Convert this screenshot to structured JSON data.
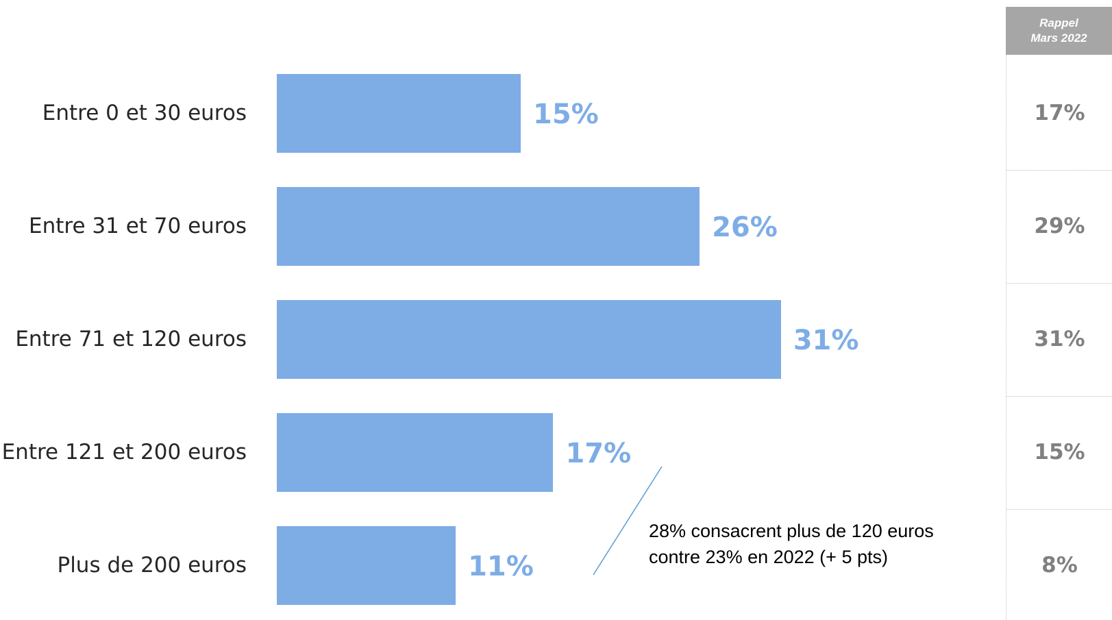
{
  "chart_data": {
    "type": "bar",
    "orientation": "horizontal",
    "categories": [
      "Entre 0 et 30 euros",
      "Entre 31 et 70 euros",
      "Entre 71 et 120 euros",
      "Entre 121 et 200 euros",
      "Plus de 200 euros"
    ],
    "values": [
      15,
      26,
      31,
      17,
      11
    ],
    "value_labels": [
      "15%",
      "26%",
      "31%",
      "17%",
      "11%"
    ],
    "unit": "%",
    "xlim": [
      0,
      40
    ],
    "grid": false,
    "bar_color": "#7eade6",
    "comparison": {
      "header_line1": "Rappel",
      "header_line2": "Mars 2022",
      "values": [
        17,
        29,
        31,
        15,
        8
      ],
      "value_labels": [
        "17%",
        "29%",
        "31%",
        "15%",
        "8%"
      ]
    },
    "annotation": {
      "line1": "28% consacrent plus de 120 euros",
      "line2": "contre 23% en 2022 (+ 5 pts)"
    }
  }
}
